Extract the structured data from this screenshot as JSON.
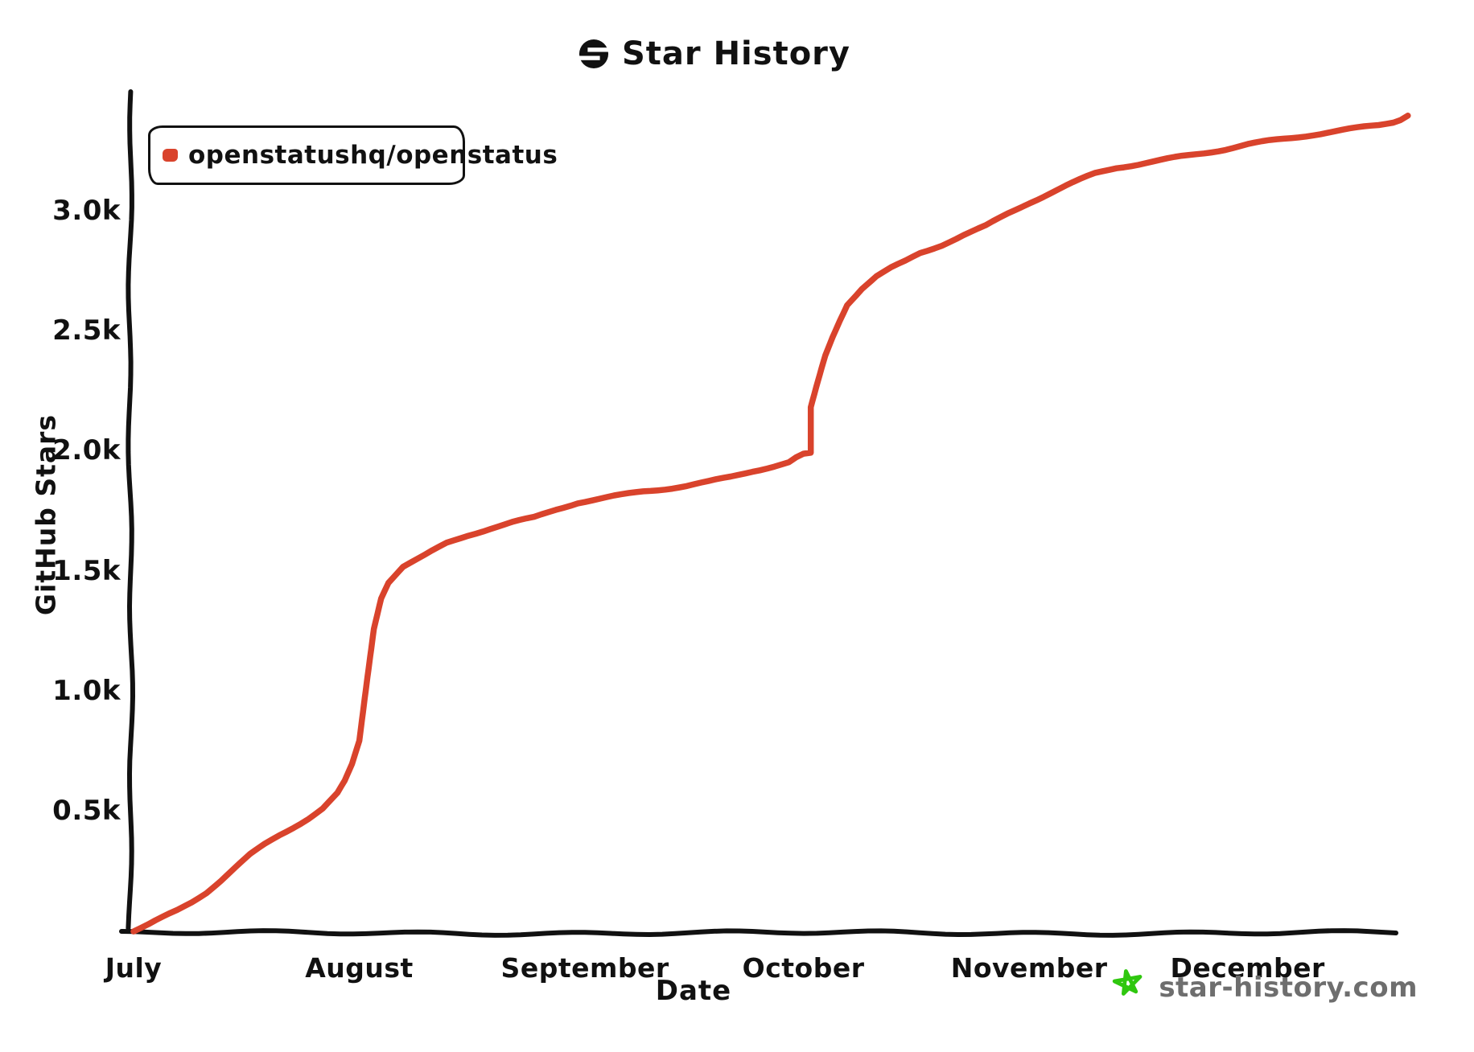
{
  "header": {
    "title": "Star History"
  },
  "watermark": {
    "text": "star-history.com",
    "text_color": "#6e6e6e",
    "star_color": "#2fc70f"
  },
  "legend": {
    "position": "top-left"
  },
  "colors": {
    "line": "#d9432c",
    "axis": "#111111"
  },
  "chart_data": {
    "type": "line",
    "title": "Star History",
    "xlabel": "Date",
    "ylabel": "GitHub Stars",
    "grid": false,
    "legend_position": "top-left",
    "ylim": [
      0,
      3450
    ],
    "x_range": "July to late December",
    "y_ticks": [
      {
        "label": "0.5k",
        "value": 500
      },
      {
        "label": "1.0k",
        "value": 1000
      },
      {
        "label": "1.5k",
        "value": 1500
      },
      {
        "label": "2.0k",
        "value": 2000
      },
      {
        "label": "2.5k",
        "value": 2500
      },
      {
        "label": "3.0k",
        "value": 3000
      }
    ],
    "x_ticks": [
      {
        "label": "July",
        "day_offset": 0
      },
      {
        "label": "August",
        "day_offset": 31
      },
      {
        "label": "September",
        "day_offset": 62
      },
      {
        "label": "October",
        "day_offset": 92
      },
      {
        "label": "November",
        "day_offset": 123
      },
      {
        "label": "December",
        "day_offset": 153
      }
    ],
    "series": [
      {
        "name": "openstatushq/openstatus",
        "color": "#d9432c",
        "points": [
          [
            "Jul 1",
            0
          ],
          [
            "Jul 3",
            25
          ],
          [
            "Jul 5",
            55
          ],
          [
            "Jul 7",
            85
          ],
          [
            "Jul 9",
            120
          ],
          [
            "Jul 11",
            160
          ],
          [
            "Jul 13",
            210
          ],
          [
            "Jul 15",
            265
          ],
          [
            "Jul 17",
            320
          ],
          [
            "Jul 19",
            365
          ],
          [
            "Jul 21",
            405
          ],
          [
            "Jul 23",
            440
          ],
          [
            "Jul 25",
            475
          ],
          [
            "Jul 27",
            515
          ],
          [
            "Jul 29",
            575
          ],
          [
            "Jul 30",
            625
          ],
          [
            "Jul 31",
            695
          ],
          [
            "Aug 1",
            795
          ],
          [
            "Aug 2",
            1030
          ],
          [
            "Aug 3",
            1265
          ],
          [
            "Aug 4",
            1390
          ],
          [
            "Aug 5",
            1455
          ],
          [
            "Aug 7",
            1520
          ],
          [
            "Aug 10",
            1565
          ],
          [
            "Aug 13",
            1615
          ],
          [
            "Aug 16",
            1650
          ],
          [
            "Aug 19",
            1680
          ],
          [
            "Aug 22",
            1705
          ],
          [
            "Aug 25",
            1725
          ],
          [
            "Aug 28",
            1760
          ],
          [
            "Aug 31",
            1790
          ],
          [
            "Sep 3",
            1805
          ],
          [
            "Sep 6",
            1820
          ],
          [
            "Sep 9",
            1835
          ],
          [
            "Sep 12",
            1845
          ],
          [
            "Sep 15",
            1855
          ],
          [
            "Sep 18",
            1870
          ],
          [
            "Sep 21",
            1890
          ],
          [
            "Sep 24",
            1915
          ],
          [
            "Sep 27",
            1935
          ],
          [
            "Sep 29",
            1950
          ],
          [
            "Sep 30",
            1970
          ],
          [
            "Oct 1",
            1985
          ],
          [
            "Oct 2",
            1990
          ],
          [
            "Oct 2",
            2180
          ],
          [
            "Oct 3",
            2290
          ],
          [
            "Oct 4",
            2400
          ],
          [
            "Oct 5",
            2480
          ],
          [
            "Oct 6",
            2550
          ],
          [
            "Oct 7",
            2615
          ],
          [
            "Oct 9",
            2680
          ],
          [
            "Oct 11",
            2730
          ],
          [
            "Oct 13",
            2765
          ],
          [
            "Oct 15",
            2795
          ],
          [
            "Oct 17",
            2830
          ],
          [
            "Oct 20",
            2865
          ],
          [
            "Oct 23",
            2905
          ],
          [
            "Oct 26",
            2940
          ],
          [
            "Oct 29",
            2990
          ],
          [
            "Nov 1",
            3035
          ],
          [
            "Nov 4",
            3075
          ],
          [
            "Nov 7",
            3115
          ],
          [
            "Nov 10",
            3155
          ],
          [
            "Nov 13",
            3182
          ],
          [
            "Nov 16",
            3197
          ],
          [
            "Nov 19",
            3214
          ],
          [
            "Nov 22",
            3232
          ],
          [
            "Nov 25",
            3248
          ],
          [
            "Nov 28",
            3264
          ],
          [
            "Dec 1",
            3282
          ],
          [
            "Dec 4",
            3296
          ],
          [
            "Dec 7",
            3308
          ],
          [
            "Dec 10",
            3321
          ],
          [
            "Dec 13",
            3333
          ],
          [
            "Dec 16",
            3346
          ],
          [
            "Dec 19",
            3360
          ],
          [
            "Dec 21",
            3374
          ],
          [
            "Dec 22",
            3386
          ],
          [
            "Dec 23",
            3400
          ]
        ]
      }
    ]
  }
}
